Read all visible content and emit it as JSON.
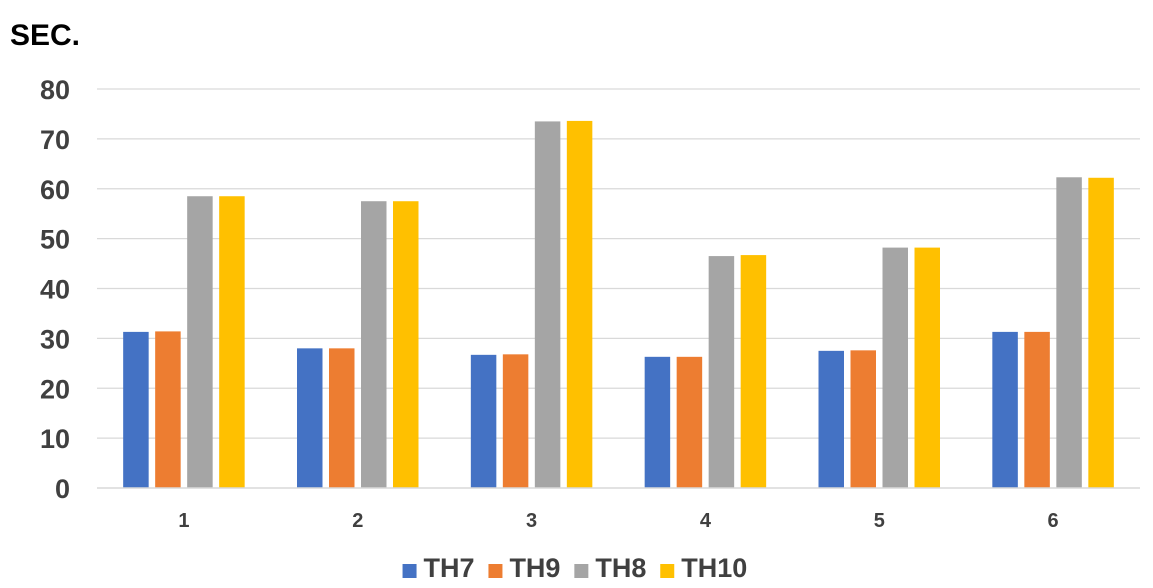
{
  "chart_data": {
    "type": "bar",
    "title": "",
    "xlabel": "",
    "ylabel": "SEC.",
    "ylim": [
      0,
      80
    ],
    "yticks": [
      "0",
      "10",
      "20",
      "30",
      "40",
      "50",
      "60",
      "70",
      "80"
    ],
    "categories": [
      "1",
      "2",
      "3",
      "4",
      "5",
      "6"
    ],
    "grid": true,
    "legend_position": "bottom",
    "series": [
      {
        "name": "TH7",
        "color": "#4472C4",
        "values": [
          31.3,
          28.0,
          26.7,
          26.3,
          27.5,
          31.3
        ]
      },
      {
        "name": "TH9",
        "color": "#ED7D31",
        "values": [
          31.4,
          28.0,
          26.8,
          26.3,
          27.6,
          31.3
        ]
      },
      {
        "name": "TH8",
        "color": "#A5A5A5",
        "values": [
          58.5,
          57.5,
          73.5,
          46.5,
          48.2,
          62.3
        ]
      },
      {
        "name": "TH10",
        "color": "#FFC000",
        "values": [
          58.5,
          57.5,
          73.6,
          46.7,
          48.2,
          62.2
        ]
      }
    ]
  }
}
